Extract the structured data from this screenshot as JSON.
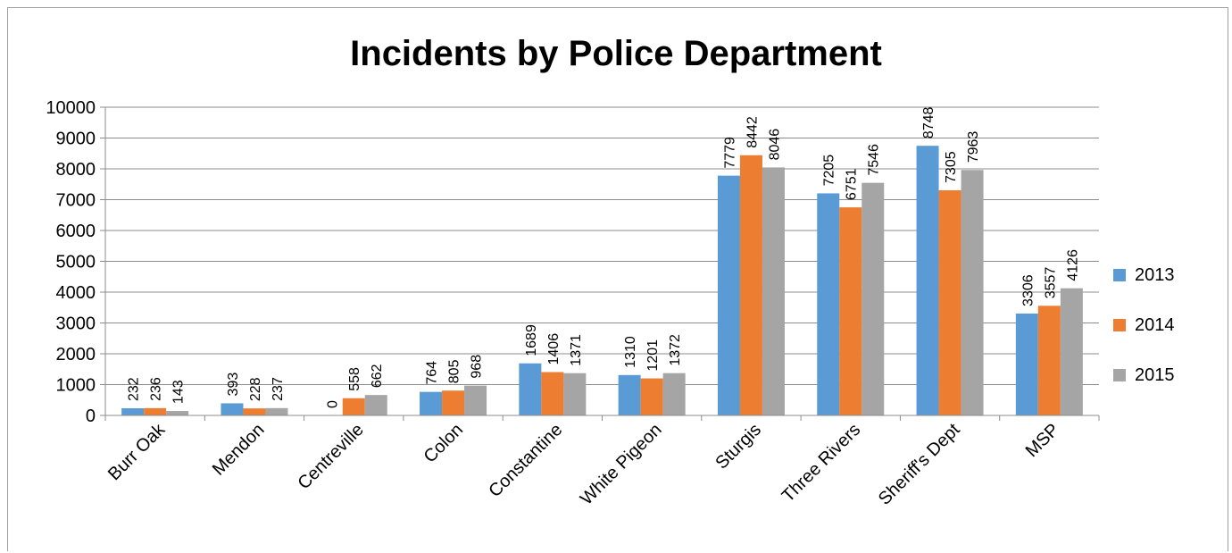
{
  "chart_data": {
    "type": "bar",
    "title": "Incidents by Police Department",
    "xlabel": "",
    "ylabel": "",
    "ylim": [
      0,
      10000
    ],
    "yticks": [
      0,
      1000,
      2000,
      3000,
      4000,
      5000,
      6000,
      7000,
      8000,
      9000,
      10000
    ],
    "grid": true,
    "legend_position": "right",
    "categories": [
      "Burr Oak",
      "Mendon",
      "Centreville",
      "Colon",
      "Constantine",
      "White Pigeon",
      "Sturgis",
      "Three Rivers",
      "Sheriff's Dept",
      "MSP"
    ],
    "series": [
      {
        "name": "2013",
        "color": "#5b9bd5",
        "values": [
          232,
          393,
          0,
          764,
          1689,
          1310,
          7779,
          7205,
          8748,
          3306
        ]
      },
      {
        "name": "2014",
        "color": "#ed7d31",
        "values": [
          236,
          228,
          558,
          805,
          1406,
          1201,
          8442,
          6751,
          7305,
          3557
        ]
      },
      {
        "name": "2015",
        "color": "#a5a5a5",
        "values": [
          143,
          237,
          662,
          968,
          1371,
          1372,
          8046,
          7546,
          7963,
          4126
        ]
      }
    ]
  }
}
